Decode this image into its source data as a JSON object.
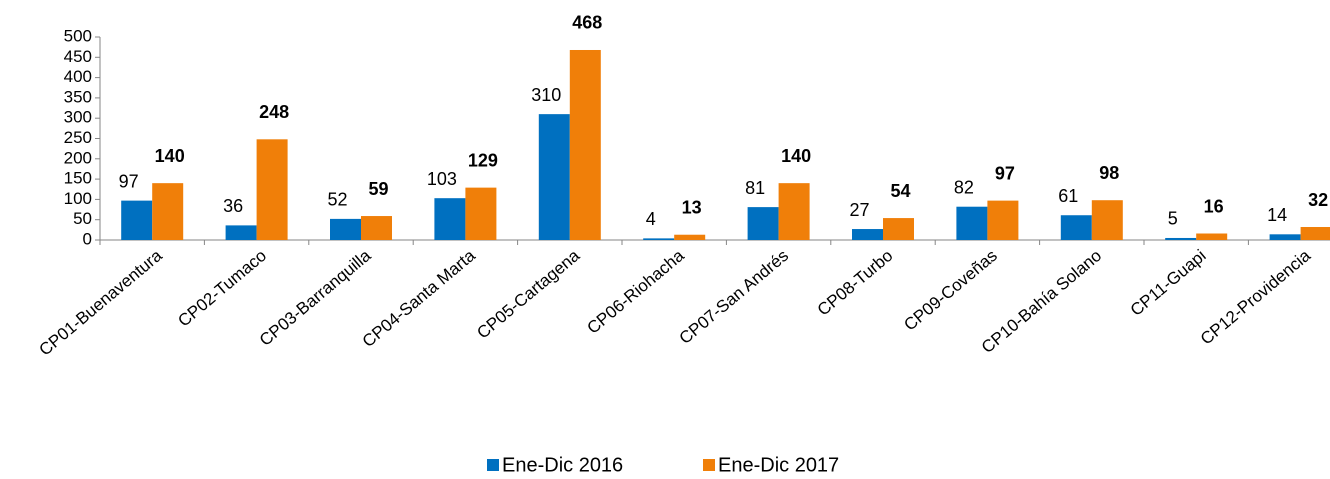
{
  "chart_data": {
    "type": "bar",
    "categories": [
      "CP01-Buenaventura",
      "CP02-Tumaco",
      "CP03-Barranquilla",
      "CP04-Santa Marta",
      "CP05-Cartagena",
      "CP06-Riohacha",
      "CP07-San Andrés",
      "CP08-Turbo",
      "CP09-Coveñas",
      "CP10-Bahía Solano",
      "CP11-Guapi",
      "CP12-Providencia"
    ],
    "series": [
      {
        "name": "Ene-Dic 2016",
        "color": "#0070c0",
        "values": [
          97,
          36,
          52,
          103,
          310,
          4,
          81,
          27,
          82,
          61,
          5,
          14
        ]
      },
      {
        "name": "Ene-Dic 2017",
        "color": "#f07f09",
        "values": [
          140,
          248,
          59,
          129,
          468,
          13,
          140,
          54,
          97,
          98,
          16,
          32
        ]
      }
    ],
    "ylim": [
      0,
      500
    ],
    "yticks": [
      0,
      50,
      100,
      150,
      200,
      250,
      300,
      350,
      400,
      450,
      500
    ],
    "grid": false,
    "legend": "bottom"
  }
}
